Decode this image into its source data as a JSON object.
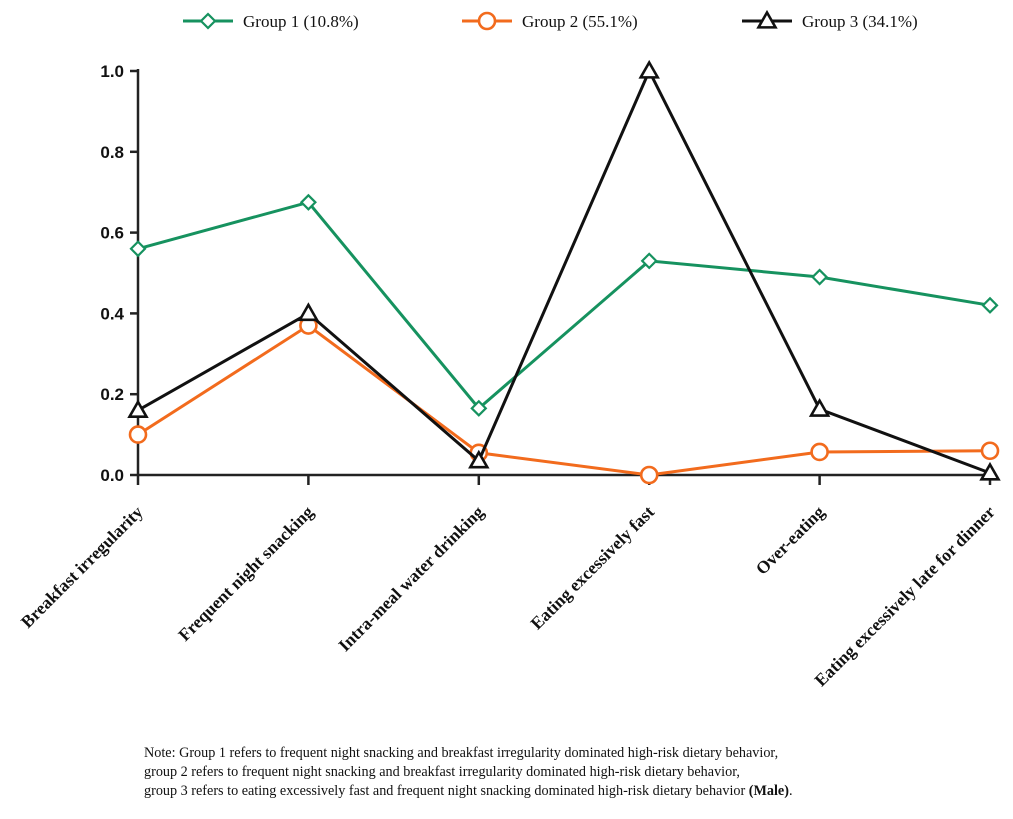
{
  "chart_data": {
    "type": "line",
    "title": "",
    "xlabel": "",
    "ylabel": "",
    "ylim": [
      0,
      1.0
    ],
    "yticks": [
      "0.0",
      "0.2",
      "0.4",
      "0.6",
      "0.8",
      "1.0"
    ],
    "categories": [
      "Breakfast irregularity",
      "Frequent night snacking",
      "Intra-meal water drinking",
      "Eating excessively fast",
      "Over-eating",
      "Eating excessively late for dinner"
    ],
    "series": [
      {
        "name": "Group 1",
        "pct": "(10.8%)",
        "color": "#16925f",
        "marker": "diamond",
        "values": [
          0.56,
          0.675,
          0.165,
          0.53,
          0.49,
          0.42
        ]
      },
      {
        "name": "Group 2",
        "pct": "(55.1%)",
        "color": "#f26b1d",
        "marker": "circle",
        "values": [
          0.1,
          0.37,
          0.055,
          0.0,
          0.057,
          0.06
        ]
      },
      {
        "name": "Group 3",
        "pct": "(34.1%)",
        "color": "#111111",
        "marker": "triangle",
        "values": [
          0.16,
          0.4,
          0.035,
          1.0,
          0.163,
          0.005
        ]
      }
    ],
    "legend_position": "top"
  },
  "note": {
    "line1": "Note: Group 1 refers to frequent night snacking and breakfast irregularity dominated high-risk dietary behavior,",
    "line2": "group 2 refers to frequent night snacking and breakfast irregularity dominated high-risk dietary behavior,",
    "line3_text": "group 3 refers to eating excessively fast and frequent night snacking dominated high-risk dietary behavior ",
    "line3_bold": "(Male)",
    "line3_end": "."
  }
}
